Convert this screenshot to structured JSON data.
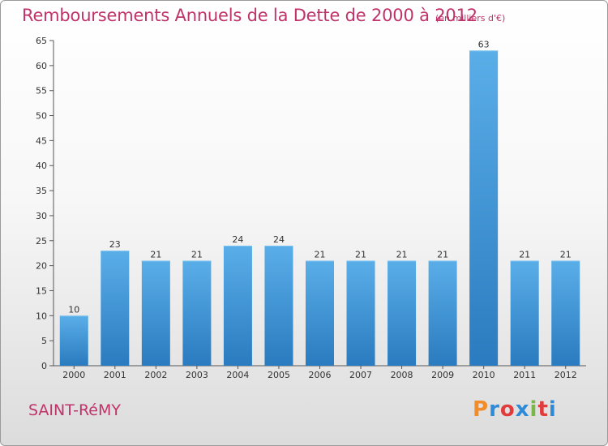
{
  "header": {
    "title": "Remboursements Annuels de la Dette de 2000 à 2012",
    "unit": "(en milliers d'€)"
  },
  "footer": {
    "town": "SAINT-RéMY",
    "logo_text": "Proxiti",
    "logo_colors": [
      "#f28c28",
      "#2e8bd8",
      "#e23b3b",
      "#2e8bd8",
      "#7ab648",
      "#e23b3b",
      "#2e8bd8"
    ]
  },
  "chart_data": {
    "type": "bar",
    "categories": [
      "2000",
      "2001",
      "2002",
      "2003",
      "2004",
      "2005",
      "2006",
      "2007",
      "2008",
      "2009",
      "2010",
      "2011",
      "2012"
    ],
    "values": [
      10,
      23,
      21,
      21,
      24,
      24,
      21,
      21,
      21,
      21,
      63,
      21,
      21
    ],
    "ylim": [
      0,
      65
    ],
    "yticks": [
      0,
      5,
      10,
      15,
      20,
      25,
      30,
      35,
      40,
      45,
      50,
      55,
      60,
      65
    ],
    "grid": false,
    "legend": false,
    "bar_color_light": "#5aaee8",
    "bar_color_dark": "#2a7bbf"
  }
}
